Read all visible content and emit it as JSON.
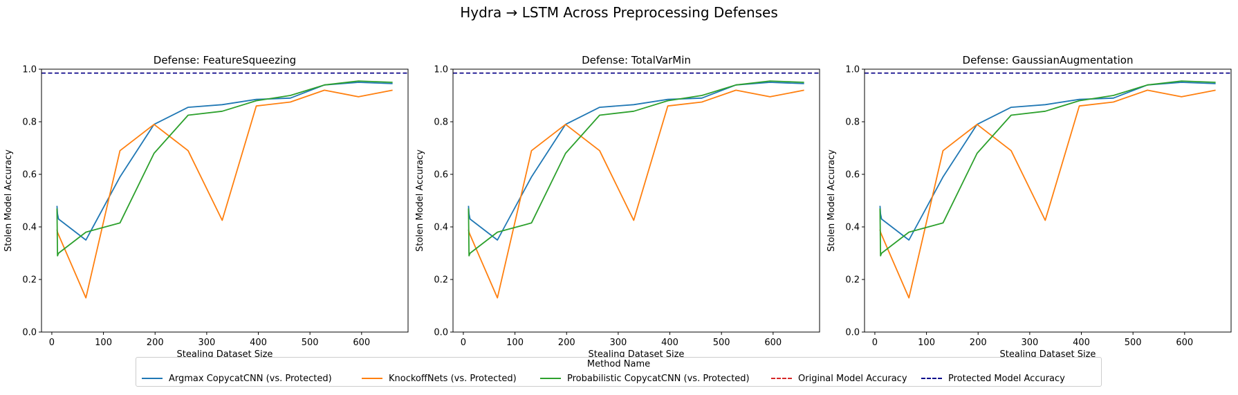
{
  "figure": {
    "suptitle": "Hydra → LSTM Across Preprocessing Defenses"
  },
  "legend": {
    "title": "Method Name",
    "entries": [
      {
        "label": "Argmax CopycatCNN (vs. Protected)",
        "color": "#1f77b4",
        "style": "solid"
      },
      {
        "label": "KnockoffNets (vs. Protected)",
        "color": "#ff7f0e",
        "style": "solid"
      },
      {
        "label": "Probabilistic CopycatCNN (vs. Protected)",
        "color": "#2ca02c",
        "style": "solid"
      },
      {
        "label": "Original Model Accuracy",
        "color": "#d62728",
        "style": "dashed"
      },
      {
        "label": "Protected Model Accuracy",
        "color": "#00008b",
        "style": "dashed"
      }
    ],
    "placement": "bottom-center"
  },
  "chart_data": [
    {
      "type": "line",
      "title": "Defense: FeatureSqueezing",
      "xlabel": "Stealing Dataset Size",
      "ylabel": "Stolen Model Accuracy",
      "xlim": [
        -20,
        690
      ],
      "ylim": [
        0,
        1.0
      ],
      "xticks": [
        0,
        100,
        200,
        300,
        400,
        500,
        600
      ],
      "yticks": [
        0.0,
        0.2,
        0.4,
        0.6,
        0.8,
        1.0
      ],
      "x": [
        10,
        11,
        13,
        66,
        132,
        198,
        264,
        330,
        396,
        462,
        528,
        594,
        660
      ],
      "series": [
        {
          "name": "Argmax CopycatCNN (vs. Protected)",
          "color": "#1f77b4",
          "values": [
            0.48,
            0.45,
            0.43,
            0.35,
            0.59,
            0.79,
            0.855,
            0.865,
            0.885,
            0.89,
            0.94,
            0.95,
            0.945
          ]
        },
        {
          "name": "KnockoffNets (vs. Protected)",
          "color": "#ff7f0e",
          "values": [
            0.39,
            0.38,
            0.37,
            0.13,
            0.69,
            0.79,
            0.69,
            0.425,
            0.86,
            0.875,
            0.92,
            0.895,
            0.92
          ]
        },
        {
          "name": "Probabilistic CopycatCNN (vs. Protected)",
          "color": "#2ca02c",
          "values": [
            0.47,
            0.29,
            0.3,
            0.38,
            0.415,
            0.68,
            0.825,
            0.84,
            0.88,
            0.9,
            0.94,
            0.955,
            0.95
          ]
        }
      ],
      "hlines": [
        {
          "name": "Original Model Accuracy",
          "color": "#d62728",
          "value": 0.985
        },
        {
          "name": "Protected Model Accuracy",
          "color": "#00008b",
          "value": 0.985
        }
      ]
    },
    {
      "type": "line",
      "title": "Defense: TotalVarMin",
      "xlabel": "Stealing Dataset Size",
      "ylabel": "Stolen Model Accuracy",
      "xlim": [
        -20,
        690
      ],
      "ylim": [
        0,
        1.0
      ],
      "xticks": [
        0,
        100,
        200,
        300,
        400,
        500,
        600
      ],
      "yticks": [
        0.0,
        0.2,
        0.4,
        0.6,
        0.8,
        1.0
      ],
      "x": [
        10,
        11,
        13,
        66,
        132,
        198,
        264,
        330,
        396,
        462,
        528,
        594,
        660
      ],
      "series": [
        {
          "name": "Argmax CopycatCNN (vs. Protected)",
          "color": "#1f77b4",
          "values": [
            0.48,
            0.45,
            0.43,
            0.35,
            0.59,
            0.79,
            0.855,
            0.865,
            0.885,
            0.89,
            0.94,
            0.95,
            0.945
          ]
        },
        {
          "name": "KnockoffNets (vs. Protected)",
          "color": "#ff7f0e",
          "values": [
            0.39,
            0.38,
            0.37,
            0.13,
            0.69,
            0.79,
            0.69,
            0.425,
            0.86,
            0.875,
            0.92,
            0.895,
            0.92
          ]
        },
        {
          "name": "Probabilistic CopycatCNN (vs. Protected)",
          "color": "#2ca02c",
          "values": [
            0.47,
            0.29,
            0.3,
            0.38,
            0.415,
            0.68,
            0.825,
            0.84,
            0.88,
            0.9,
            0.94,
            0.955,
            0.95
          ]
        }
      ],
      "hlines": [
        {
          "name": "Original Model Accuracy",
          "color": "#d62728",
          "value": 0.985
        },
        {
          "name": "Protected Model Accuracy",
          "color": "#00008b",
          "value": 0.985
        }
      ]
    },
    {
      "type": "line",
      "title": "Defense: GaussianAugmentation",
      "xlabel": "Stealing Dataset Size",
      "ylabel": "Stolen Model Accuracy",
      "xlim": [
        -20,
        690
      ],
      "ylim": [
        0,
        1.0
      ],
      "xticks": [
        0,
        100,
        200,
        300,
        400,
        500,
        600
      ],
      "yticks": [
        0.0,
        0.2,
        0.4,
        0.6,
        0.8,
        1.0
      ],
      "x": [
        10,
        11,
        13,
        66,
        132,
        198,
        264,
        330,
        396,
        462,
        528,
        594,
        660
      ],
      "series": [
        {
          "name": "Argmax CopycatCNN (vs. Protected)",
          "color": "#1f77b4",
          "values": [
            0.48,
            0.45,
            0.43,
            0.35,
            0.59,
            0.79,
            0.855,
            0.865,
            0.885,
            0.89,
            0.94,
            0.95,
            0.945
          ]
        },
        {
          "name": "KnockoffNets (vs. Protected)",
          "color": "#ff7f0e",
          "values": [
            0.39,
            0.38,
            0.37,
            0.13,
            0.69,
            0.79,
            0.69,
            0.425,
            0.86,
            0.875,
            0.92,
            0.895,
            0.92
          ]
        },
        {
          "name": "Probabilistic CopycatCNN (vs. Protected)",
          "color": "#2ca02c",
          "values": [
            0.47,
            0.29,
            0.3,
            0.38,
            0.415,
            0.68,
            0.825,
            0.84,
            0.88,
            0.9,
            0.94,
            0.955,
            0.95
          ]
        }
      ],
      "hlines": [
        {
          "name": "Original Model Accuracy",
          "color": "#d62728",
          "value": 0.985
        },
        {
          "name": "Protected Model Accuracy",
          "color": "#00008b",
          "value": 0.985
        }
      ]
    }
  ]
}
